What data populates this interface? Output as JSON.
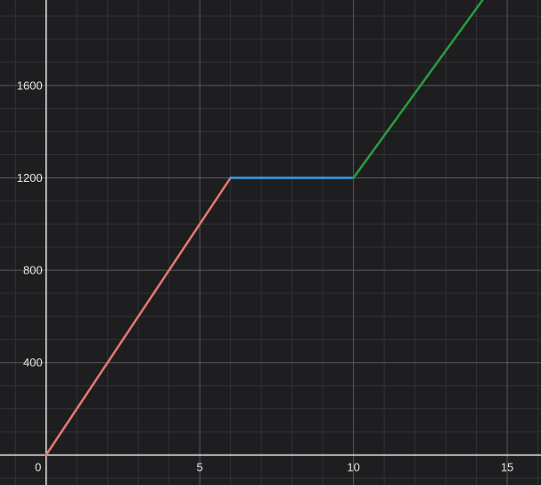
{
  "chart_data": {
    "type": "line",
    "title": "",
    "xlabel": "",
    "ylabel": "",
    "xlim": [
      -1.5,
      16.1
    ],
    "ylim": [
      -130,
      1970
    ],
    "grid": true,
    "background_color": "#1e1e20",
    "major_grid_color": "#5a5a5e",
    "minor_grid_color": "#333337",
    "axis_color": "#e8e8e8",
    "x_ticks": [
      {
        "value": 0,
        "label": "0"
      },
      {
        "value": 5,
        "label": "5"
      },
      {
        "value": 10,
        "label": "10"
      },
      {
        "value": 15,
        "label": "15"
      }
    ],
    "y_ticks": [
      {
        "value": 400,
        "label": "400"
      },
      {
        "value": 800,
        "label": "800"
      },
      {
        "value": 1200,
        "label": "1200"
      },
      {
        "value": 1600,
        "label": "1600"
      }
    ],
    "series": [
      {
        "color": "#e8796e",
        "points": [
          [
            0,
            0
          ],
          [
            6,
            1200
          ]
        ]
      },
      {
        "color": "#3a9ee6",
        "points": [
          [
            6,
            1200
          ],
          [
            10,
            1200
          ]
        ]
      },
      {
        "color": "#2a9c3f",
        "points": [
          [
            10,
            1200
          ],
          [
            16,
            2300
          ]
        ]
      }
    ]
  }
}
